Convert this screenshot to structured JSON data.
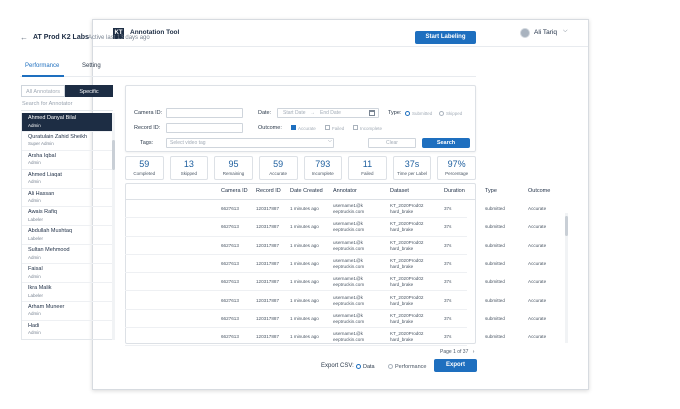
{
  "app": {
    "logo_text": "KT",
    "title": "Annotation Tool"
  },
  "user": {
    "name": "Ali Tariq",
    "chevron": "⌵"
  },
  "project": {
    "back": "←",
    "title": "AT Prod K2 Labs",
    "status": "Active last 13 days ago",
    "start_button": "Start Labeling"
  },
  "tabs": [
    {
      "label": "Performance",
      "active": true
    },
    {
      "label": "Setting",
      "active": false
    }
  ],
  "annotator_panel": {
    "toggle": {
      "all": "All Annotators",
      "specific": "Specific",
      "selected": "Specific"
    },
    "search_placeholder": "Search for Annotator",
    "items": [
      {
        "name": "Ahmed Danyal Bilal",
        "role": "Admin"
      },
      {
        "name": "Quratulain Zahid Sheikh",
        "role": "Super Admin"
      },
      {
        "name": "Arsha Iqbal",
        "role": "Admin"
      },
      {
        "name": "Ahmed Liaqat",
        "role": "Admin"
      },
      {
        "name": "Ali Hassan",
        "role": "Admin"
      },
      {
        "name": "Awais Rafiq",
        "role": "Labeler"
      },
      {
        "name": "Abdullah Mushtaq",
        "role": "Labeler"
      },
      {
        "name": "Sultan Mehmood",
        "role": "Admin"
      },
      {
        "name": "Faisal",
        "role": "Admin"
      },
      {
        "name": "Ikra Malik",
        "role": "Labeler"
      },
      {
        "name": "Arham Muneer",
        "role": "Admin"
      },
      {
        "name": "Hadi",
        "role": "Admin"
      }
    ]
  },
  "filters": {
    "camera_id_label": "Camera ID:",
    "record_id_label": "Record ID:",
    "date_label": "Date:",
    "start_date_placeholder": "Start Date",
    "date_arrow": "→",
    "end_date_placeholder": "End Date",
    "type_label": "Type:",
    "type_options": [
      {
        "label": "Submitted",
        "checked": true
      },
      {
        "label": "Skipped",
        "checked": false
      }
    ],
    "outcome_label": "Outcome:",
    "outcome_options": [
      {
        "label": "Accurate",
        "checked": true
      },
      {
        "label": "Failed",
        "checked": false
      },
      {
        "label": "Incomplete",
        "checked": false
      }
    ],
    "tags_label": "Tags:",
    "tags_placeholder": "Select video tag",
    "tags_chevron": "⌵",
    "clear_button": "Clear",
    "search_button": "Search"
  },
  "stats": [
    {
      "value": "59",
      "label": "Completed"
    },
    {
      "value": "13",
      "label": "Skipped"
    },
    {
      "value": "95",
      "label": "Remaining"
    },
    {
      "value": "59",
      "label": "Accurate"
    },
    {
      "value": "793",
      "label": "Incomplete"
    },
    {
      "value": "11",
      "label": "Failed"
    },
    {
      "value": "37s",
      "label": "Time per Label"
    },
    {
      "value": "97%",
      "label": "Percentage"
    }
  ],
  "table": {
    "columns": [
      "Camera ID",
      "Record ID",
      "Date Created",
      "Annotator",
      "Dataset",
      "Duration",
      "Type",
      "Outcome"
    ],
    "rows": [
      {
        "camera_id": "6627613",
        "record_id": "120317887",
        "date_created": "1 minutes ago",
        "annotator_1": "username1@k",
        "annotator_2": "eeptruckin.com",
        "dataset_1": "KT_2020Prod02",
        "dataset_2": "hard_brake",
        "duration": "37s",
        "type": "submitted",
        "outcome": "Accurate"
      },
      {
        "camera_id": "6627613",
        "record_id": "120317887",
        "date_created": "1 minutes ago",
        "annotator_1": "username1@k",
        "annotator_2": "eeptruckin.com",
        "dataset_1": "KT_2020Prod02",
        "dataset_2": "hard_brake",
        "duration": "37s",
        "type": "submitted",
        "outcome": "Accurate"
      },
      {
        "camera_id": "6627613",
        "record_id": "120317887",
        "date_created": "1 minutes ago",
        "annotator_1": "username1@k",
        "annotator_2": "eeptruckin.com",
        "dataset_1": "KT_2020Prod02",
        "dataset_2": "hard_brake",
        "duration": "37s",
        "type": "submitted",
        "outcome": "Accurate"
      },
      {
        "camera_id": "6627613",
        "record_id": "120317887",
        "date_created": "1 minutes ago",
        "annotator_1": "username1@k",
        "annotator_2": "eeptruckin.com",
        "dataset_1": "KT_2020Prod02",
        "dataset_2": "hard_brake",
        "duration": "37s",
        "type": "submitted",
        "outcome": "Accurate"
      },
      {
        "camera_id": "6627613",
        "record_id": "120317887",
        "date_created": "1 minutes ago",
        "annotator_1": "username1@k",
        "annotator_2": "eeptruckin.com",
        "dataset_1": "KT_2020Prod02",
        "dataset_2": "hard_brake",
        "duration": "37s",
        "type": "submitted",
        "outcome": "Accurate"
      },
      {
        "camera_id": "6627613",
        "record_id": "120317887",
        "date_created": "1 minutes ago",
        "annotator_1": "username1@k",
        "annotator_2": "eeptruckin.com",
        "dataset_1": "KT_2020Prod02",
        "dataset_2": "hard_brake",
        "duration": "37s",
        "type": "submitted",
        "outcome": "Accurate"
      },
      {
        "camera_id": "6627613",
        "record_id": "120317887",
        "date_created": "1 minutes ago",
        "annotator_1": "username1@k",
        "annotator_2": "eeptruckin.com",
        "dataset_1": "KT_2020Prod02",
        "dataset_2": "hard_brake",
        "duration": "37s",
        "type": "submitted",
        "outcome": "Accurate"
      },
      {
        "camera_id": "6627613",
        "record_id": "120317887",
        "date_created": "1 minutes ago",
        "annotator_1": "username1@k",
        "annotator_2": "eeptruckin.com",
        "dataset_1": "KT_2020Prod02",
        "dataset_2": "hard_brake",
        "duration": "37s",
        "type": "submitted",
        "outcome": "Accurate"
      }
    ]
  },
  "pagination": {
    "text": "Page 1 of 37",
    "next": "›"
  },
  "export": {
    "label": "Export CSV:",
    "options": [
      {
        "label": "Data",
        "checked": true
      },
      {
        "label": "Performance",
        "checked": false
      }
    ],
    "button": "Export"
  },
  "colors": {
    "primary": "#1e6fbf",
    "dark": "#1d2d44",
    "stat_value": "#1d5e9e"
  }
}
